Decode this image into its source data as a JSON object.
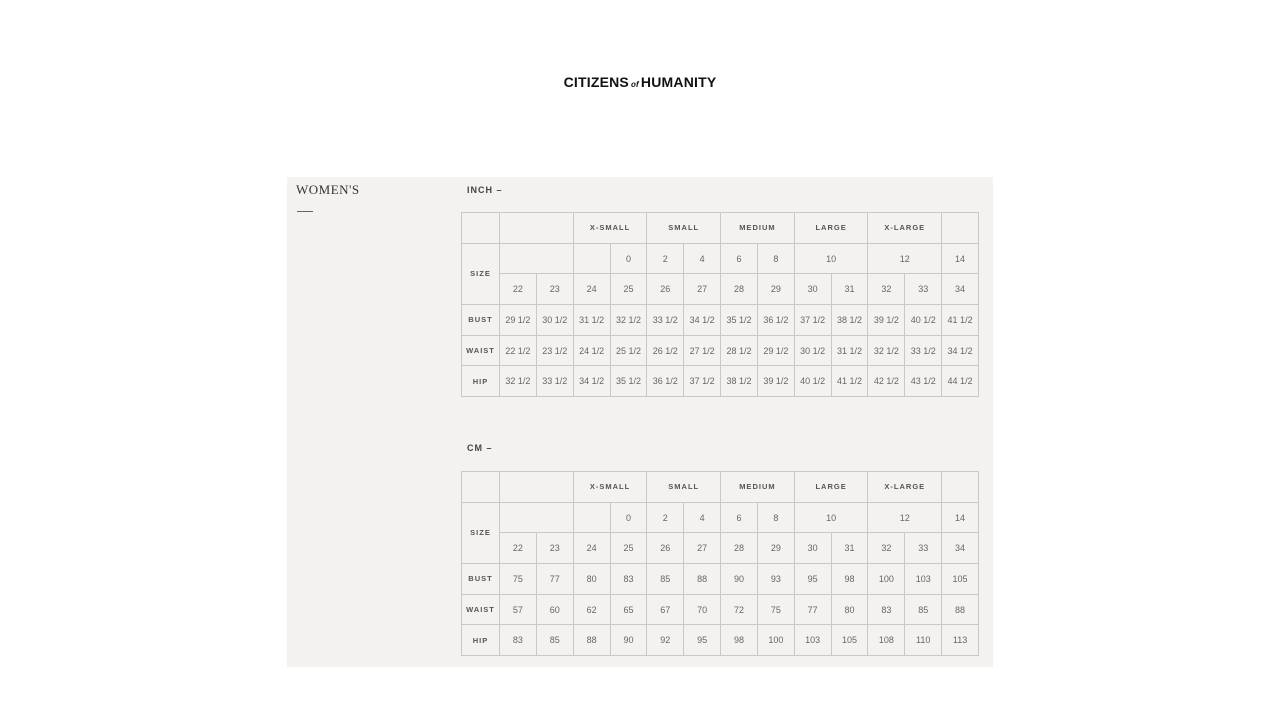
{
  "brand": {
    "left": "CITIZENS",
    "of": "of",
    "right": "HUMANITY"
  },
  "heading": "WOMEN'S",
  "size_label": "SIZE",
  "groups": [
    "X-SMALL",
    "SMALL",
    "MEDIUM",
    "LARGE",
    "X-LARGE"
  ],
  "us_sizes": [
    "0",
    "2",
    "4",
    "6",
    "8",
    "10",
    "12",
    "14"
  ],
  "waist_sizes": [
    "22",
    "23",
    "24",
    "25",
    "26",
    "27",
    "28",
    "29",
    "30",
    "31",
    "32",
    "33",
    "34"
  ],
  "tables": [
    {
      "unit": "INCH –",
      "rows": [
        {
          "label": "BUST",
          "values": [
            "29 1/2",
            "30 1/2",
            "31 1/2",
            "32 1/2",
            "33 1/2",
            "34 1/2",
            "35 1/2",
            "36 1/2",
            "37 1/2",
            "38 1/2",
            "39 1/2",
            "40 1/2",
            "41 1/2"
          ]
        },
        {
          "label": "WAIST",
          "values": [
            "22 1/2",
            "23 1/2",
            "24 1/2",
            "25 1/2",
            "26 1/2",
            "27 1/2",
            "28 1/2",
            "29 1/2",
            "30 1/2",
            "31 1/2",
            "32 1/2",
            "33 1/2",
            "34 1/2"
          ]
        },
        {
          "label": "HIP",
          "values": [
            "32 1/2",
            "33 1/2",
            "34 1/2",
            "35 1/2",
            "36 1/2",
            "37 1/2",
            "38 1/2",
            "39 1/2",
            "40 1/2",
            "41 1/2",
            "42 1/2",
            "43 1/2",
            "44 1/2"
          ]
        }
      ]
    },
    {
      "unit": "CM –",
      "rows": [
        {
          "label": "BUST",
          "values": [
            "75",
            "77",
            "80",
            "83",
            "85",
            "88",
            "90",
            "93",
            "95",
            "98",
            "100",
            "103",
            "105"
          ]
        },
        {
          "label": "WAIST",
          "values": [
            "57",
            "60",
            "62",
            "65",
            "67",
            "70",
            "72",
            "75",
            "77",
            "80",
            "83",
            "85",
            "88"
          ]
        },
        {
          "label": "HIP",
          "values": [
            "83",
            "85",
            "88",
            "90",
            "92",
            "95",
            "98",
            "100",
            "103",
            "105",
            "108",
            "110",
            "113"
          ]
        }
      ]
    }
  ]
}
